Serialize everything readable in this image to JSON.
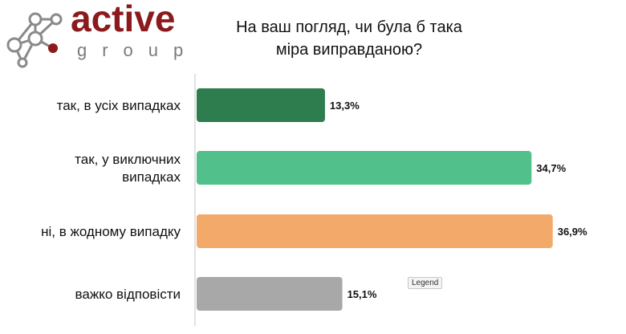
{
  "brand": {
    "name": "active",
    "sub": "group"
  },
  "title_lines": [
    "На ваш погляд, чи була б така",
    "міра виправданою?"
  ],
  "legend_chip": "Legend",
  "chart_data": {
    "type": "bar",
    "orientation": "horizontal",
    "title": "На ваш погляд, чи була б така міра виправданою?",
    "categories": [
      [
        "так, в усіх випадках"
      ],
      [
        "так, у виключних",
        "випадках"
      ],
      [
        "ні, в жодному випадку"
      ],
      [
        "важко відповісти"
      ]
    ],
    "values": [
      13.3,
      34.7,
      36.9,
      15.1
    ],
    "value_labels": [
      "13,3%",
      "34,7%",
      "36,9%",
      "15,1%"
    ],
    "colors": [
      "#2e7d4f",
      "#52c08a",
      "#f2a96a",
      "#a8a8a8"
    ],
    "xlim": [
      0,
      40
    ],
    "grid": false
  }
}
